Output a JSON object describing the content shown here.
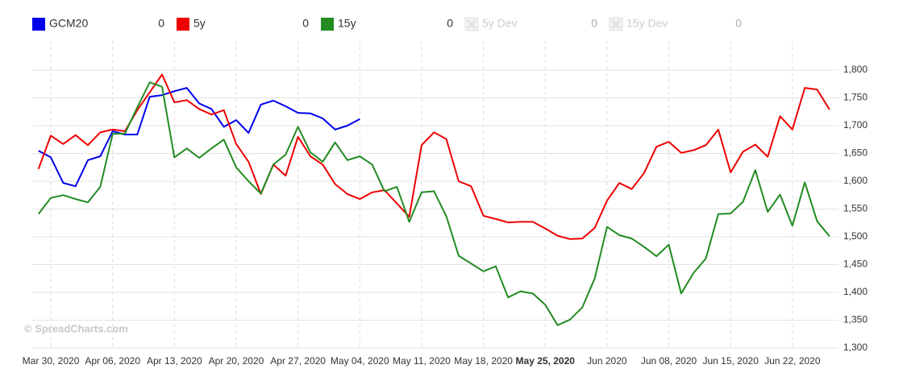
{
  "chart_data": {
    "type": "line",
    "watermark": "© SpreadCharts.com",
    "categories": [
      null,
      "Mar 30, 2020",
      null,
      null,
      null,
      null,
      "Apr 06, 2020",
      null,
      null,
      null,
      null,
      "Apr 13, 2020",
      null,
      null,
      null,
      null,
      "Apr 20, 2020",
      null,
      null,
      null,
      null,
      "Apr 27, 2020",
      null,
      null,
      null,
      null,
      "May 04, 2020",
      null,
      null,
      null,
      null,
      "May 11, 2020",
      null,
      null,
      null,
      null,
      "May 18, 2020",
      null,
      null,
      null,
      null,
      "May 25, 2020",
      null,
      null,
      null,
      null,
      "Jun 2020",
      null,
      null,
      null,
      null,
      "Jun 08, 2020",
      null,
      null,
      null,
      null,
      "Jun 15, 2020",
      null,
      null,
      null,
      null,
      "Jun 22, 2020",
      null,
      null,
      null
    ],
    "bold_category_labels": [
      41
    ],
    "ylim": [
      1300,
      1800
    ],
    "yticks": [
      {
        "value": 1300,
        "label": "1,300"
      },
      {
        "value": 1350,
        "label": "1,350"
      },
      {
        "value": 1400,
        "label": "1,400"
      },
      {
        "value": 1450,
        "label": "1,450"
      },
      {
        "value": 1500,
        "label": "1,500"
      },
      {
        "value": 1550,
        "label": "1,550"
      },
      {
        "value": 1600,
        "label": "1,600"
      },
      {
        "value": 1650,
        "label": "1,650"
      },
      {
        "value": 1700,
        "label": "1,700"
      },
      {
        "value": 1750,
        "label": "1,750"
      },
      {
        "value": 1800,
        "label": "1,800"
      }
    ],
    "grid": true,
    "series": [
      {
        "name": "GCM20",
        "color": "#0000ee",
        "legend_value": 0,
        "hidden": false,
        "values": [
          1655,
          1643,
          1597,
          1591,
          1638,
          1645,
          1690,
          1684,
          1684,
          1752,
          1755,
          1762,
          1768,
          1740,
          1730,
          1698,
          1710,
          1687,
          1738,
          1745,
          1735,
          1723,
          1722,
          1713,
          1693,
          1700,
          1712,
          null,
          null,
          null,
          null,
          null,
          null,
          null,
          null,
          null,
          null,
          null,
          null,
          null,
          null,
          null,
          null,
          null,
          null,
          null,
          null,
          null,
          null,
          null,
          null,
          null,
          null,
          null,
          null,
          null,
          null,
          null,
          null,
          null,
          null,
          null,
          null,
          null,
          null
        ]
      },
      {
        "name": "5y",
        "color": "#ee0000",
        "legend_value": 0,
        "hidden": false,
        "values": [
          1622,
          1682,
          1667,
          1683,
          1665,
          1688,
          1693,
          1690,
          1728,
          1760,
          1792,
          1742,
          1746,
          1730,
          1720,
          1728,
          1667,
          1635,
          1577,
          1630,
          1610,
          1680,
          1645,
          1630,
          1595,
          1577,
          1568,
          1580,
          1584,
          1560,
          1536,
          1665,
          1688,
          1676,
          1600,
          1591,
          1538,
          1532,
          1526,
          1527,
          1527,
          1515,
          1502,
          1496,
          1497,
          1516,
          1565,
          1597,
          1586,
          1615,
          1662,
          1671,
          1651,
          1656,
          1665,
          1693,
          1616,
          1653,
          1666,
          1644,
          1717,
          1693,
          1768,
          1765,
          1729
        ]
      },
      {
        "name": "15y",
        "color": "#228b22",
        "legend_value": 0,
        "hidden": false,
        "values": [
          1541,
          1570,
          1575,
          1568,
          1562,
          1590,
          1685,
          1686,
          1733,
          1778,
          1770,
          1643,
          1659,
          1642,
          1659,
          1675,
          1625,
          1600,
          1578,
          1630,
          1648,
          1698,
          1652,
          1635,
          1670,
          1638,
          1645,
          1630,
          1582,
          1590,
          1527,
          1580,
          1582,
          1537,
          1466,
          1452,
          1438,
          1447,
          1391,
          1402,
          1398,
          1378,
          1341,
          1351,
          1373,
          1425,
          1518,
          1503,
          1497,
          1482,
          1465,
          1486,
          1398,
          1435,
          1461,
          1541,
          1542,
          1563,
          1620,
          1545,
          1576,
          1520,
          1598,
          1528,
          1501
        ]
      },
      {
        "name": "5y Dev",
        "color": "#cccccc",
        "legend_value": 0,
        "hidden": true,
        "values": [
          null,
          null,
          null,
          null,
          null,
          null,
          null,
          null,
          null,
          null,
          null,
          null,
          null,
          null,
          null,
          null,
          null,
          null,
          null,
          null,
          null,
          null,
          null,
          null,
          null,
          null,
          null,
          null,
          null,
          null,
          null,
          null,
          null,
          null,
          null,
          null,
          null,
          null,
          null,
          null,
          null,
          null,
          null,
          null,
          null,
          null,
          null,
          null,
          null,
          null,
          null,
          null,
          null,
          null,
          null,
          null,
          null,
          null,
          null,
          null,
          null,
          null,
          null,
          null,
          null
        ]
      },
      {
        "name": "15y Dev",
        "color": "#cccccc",
        "legend_value": 0,
        "hidden": true,
        "values": [
          null,
          null,
          null,
          null,
          null,
          null,
          null,
          null,
          null,
          null,
          null,
          null,
          null,
          null,
          null,
          null,
          null,
          null,
          null,
          null,
          null,
          null,
          null,
          null,
          null,
          null,
          null,
          null,
          null,
          null,
          null,
          null,
          null,
          null,
          null,
          null,
          null,
          null,
          null,
          null,
          null,
          null,
          null,
          null,
          null,
          null,
          null,
          null,
          null,
          null,
          null,
          null,
          null,
          null,
          null,
          null,
          null,
          null,
          null,
          null,
          null,
          null,
          null,
          null,
          null
        ]
      }
    ]
  }
}
